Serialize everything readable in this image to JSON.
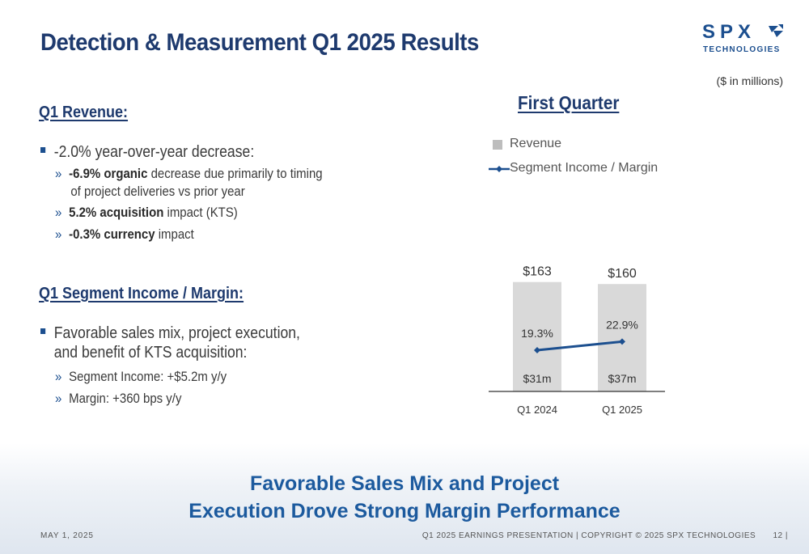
{
  "header": {
    "title": "Detection & Measurement Q1 2025 Results",
    "logo_main": "SPX",
    "logo_sub": "TECHNOLOGIES",
    "units_note": "($ in millions)"
  },
  "revenue_section": {
    "heading": "Q1 Revenue:",
    "bullet": "-2.0% year-over-year decrease:",
    "subs": [
      {
        "bold": "-6.9% organic",
        "text": " decrease due primarily to timing",
        "line2": "of project deliveries vs prior year"
      },
      {
        "bold": "5.2% acquisition",
        "text": " impact (KTS)"
      },
      {
        "bold": "-0.3% currency",
        "text": " impact"
      }
    ]
  },
  "income_section": {
    "heading": "Q1 Segment Income / Margin:",
    "bullet_line1": "Favorable sales mix, project execution,",
    "bullet_line2": "and benefit of KTS acquisition:",
    "subs": [
      "Segment Income: +$5.2m y/y",
      "Margin: +360 bps y/y"
    ]
  },
  "chart_data": {
    "type": "bar",
    "title": "First Quarter",
    "categories": [
      "Q1 2024",
      "Q1 2025"
    ],
    "series": [
      {
        "name": "Revenue",
        "type": "bar",
        "values": [
          163,
          160
        ],
        "labels": [
          "$163",
          "$160"
        ],
        "color": "#d9d9d9"
      },
      {
        "name": "Segment Income / Margin",
        "type": "line",
        "values": [
          19.3,
          22.9
        ],
        "labels": [
          "19.3%",
          "22.9%"
        ],
        "income_labels": [
          "$31m",
          "$37m"
        ],
        "color": "#1c4f8f"
      }
    ],
    "legend_position": "top-left",
    "grid": false
  },
  "footer": {
    "tagline_line1": "Favorable Sales Mix and Project",
    "tagline_line2": "Execution Drove Strong Margin Performance",
    "date": "MAY 1, 2025",
    "right": "Q1 2025 EARNINGS PRESENTATION | COPYRIGHT © 2025 SPX TECHNOLOGIES",
    "page": "12 |"
  },
  "colors": {
    "brand": "#1c4f8f",
    "title": "#1e3a6e",
    "tagline": "#1c5a9e",
    "bar": "#d9d9d9"
  }
}
